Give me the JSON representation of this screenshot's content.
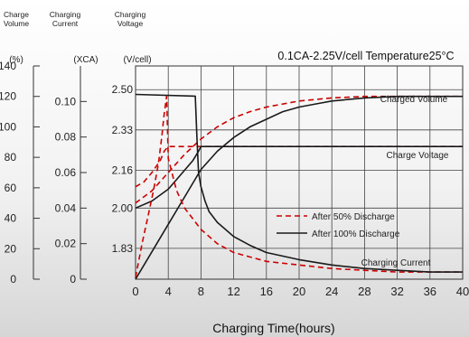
{
  "chart_data": {
    "type": "line",
    "title": "0.1CA-2.25V/cell  Temperature25°C",
    "xlabel": "Charging Time(hours)",
    "xlim": [
      0,
      40
    ],
    "x_ticks": [
      0,
      4,
      8,
      12,
      16,
      20,
      24,
      28,
      32,
      36,
      40
    ],
    "axis_headers": [
      {
        "id": "volume",
        "title": [
          "Charge",
          "Volume"
        ],
        "unit": "(%)",
        "ticks": [
          0,
          20,
          40,
          60,
          80,
          100,
          120,
          140
        ],
        "lim": [
          0,
          140
        ]
      },
      {
        "id": "current",
        "title": [
          "Charging",
          "Current"
        ],
        "unit": "(XCA)",
        "ticks": [
          "0",
          "0.02",
          "0.04",
          "0.06",
          "0.08",
          "0.10"
        ],
        "lim": [
          0,
          0.12
        ]
      },
      {
        "id": "voltage",
        "title": [
          "Charging",
          "Voltage"
        ],
        "unit": "(V/cell)",
        "ticks": [
          "1.83",
          "2.00",
          "2.16",
          "2.33",
          "2.50"
        ],
        "lim": [
          1.7,
          2.6
        ]
      }
    ],
    "legend": [
      {
        "label": "After 50% Discharge",
        "style": "dashed",
        "color": "#cc0000"
      },
      {
        "label": "After 100%  Discharge",
        "style": "solid",
        "color": "#1a1a1a"
      }
    ],
    "curve_labels": [
      "Charged Volume",
      "Charge Voltage",
      "Charging Current"
    ],
    "series": [
      {
        "group": "after-50",
        "kind": "charged-volume",
        "axis": "volume",
        "x": [
          0,
          2,
          4,
          6,
          8,
          10,
          12,
          14,
          16,
          18,
          20,
          22,
          24,
          26,
          28,
          30,
          32,
          36,
          40
        ],
        "y": [
          50,
          58,
          70,
          82,
          92,
          100,
          106,
          110,
          113,
          115,
          117,
          118,
          119,
          119.5,
          120,
          120,
          120,
          120,
          120
        ]
      },
      {
        "group": "after-100",
        "kind": "charged-volume",
        "axis": "volume",
        "x": [
          0,
          2,
          4,
          6,
          8,
          10,
          12,
          14,
          16,
          18,
          20,
          22,
          24,
          26,
          28,
          30,
          32,
          36,
          40
        ],
        "y": [
          0,
          18,
          36,
          54,
          72,
          84,
          93,
          100,
          105,
          110,
          113,
          115,
          117,
          118,
          119,
          119.5,
          120,
          120,
          120
        ]
      },
      {
        "group": "after-50",
        "kind": "charge-voltage",
        "axis": "voltage",
        "x": [
          0,
          1,
          2,
          3,
          3.5,
          4,
          40
        ],
        "y": [
          2.09,
          2.11,
          2.15,
          2.2,
          2.24,
          2.26,
          2.26
        ]
      },
      {
        "group": "after-100",
        "kind": "charge-voltage",
        "axis": "voltage",
        "x": [
          0,
          2,
          4,
          5,
          6,
          7,
          7.7,
          8,
          40
        ],
        "y": [
          2.0,
          2.03,
          2.08,
          2.12,
          2.16,
          2.2,
          2.24,
          2.26,
          2.26
        ]
      },
      {
        "group": "after-50",
        "kind": "charging-current",
        "axis": "current",
        "x": [
          0,
          0.8,
          1.5,
          2.2,
          2.8,
          3.2,
          3.5,
          3.8,
          4,
          5,
          6,
          8,
          10,
          12,
          16,
          20,
          24,
          28,
          32,
          36,
          40
        ],
        "y": [
          0.001,
          0.02,
          0.035,
          0.05,
          0.065,
          0.08,
          0.093,
          0.103,
          0.068,
          0.05,
          0.04,
          0.028,
          0.02,
          0.015,
          0.01,
          0.008,
          0.006,
          0.005,
          0.004,
          0.004,
          0.004
        ]
      },
      {
        "group": "after-100",
        "kind": "charging-current",
        "axis": "current",
        "x": [
          0,
          7.3,
          7.5,
          7.7,
          8,
          8.5,
          9,
          10,
          12,
          14,
          16,
          20,
          24,
          28,
          32,
          36,
          40
        ],
        "y": [
          0.104,
          0.103,
          0.08,
          0.06,
          0.052,
          0.044,
          0.038,
          0.032,
          0.024,
          0.019,
          0.015,
          0.011,
          0.008,
          0.006,
          0.005,
          0.004,
          0.004
        ]
      }
    ]
  }
}
